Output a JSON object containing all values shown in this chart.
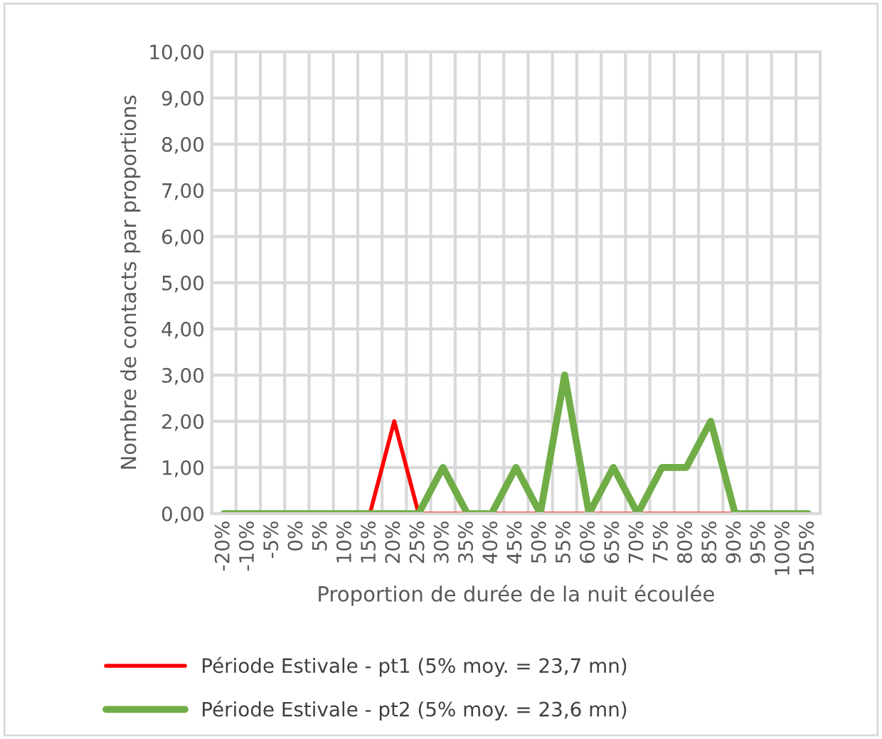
{
  "chart_data": {
    "type": "line",
    "xlabel": "Proportion de durée de la nuit écoulée",
    "ylabel": "Nombre de contacts par proportions",
    "categories": [
      "-20%",
      "-10%",
      "-5%",
      "0%",
      "5%",
      "10%",
      "15%",
      "20%",
      "25%",
      "30%",
      "35%",
      "40%",
      "45%",
      "50%",
      "55%",
      "60%",
      "65%",
      "70%",
      "75%",
      "80%",
      "85%",
      "90%",
      "95%",
      "100%",
      "105%"
    ],
    "series": [
      {
        "name": "Période Estivale - pt1 (5% moy. = 23,7 mn)",
        "color": "#ff0000",
        "values": [
          null,
          null,
          null,
          null,
          null,
          null,
          0,
          2,
          0,
          0,
          0,
          0,
          0,
          0,
          0,
          0,
          0,
          0,
          0,
          0,
          0,
          0,
          null,
          null,
          null
        ]
      },
      {
        "name": "Période Estivale - pt2 (5% moy. = 23,6 mn)",
        "color": "#70ad47",
        "values": [
          0,
          0,
          0,
          0,
          0,
          0,
          0,
          0,
          0,
          1,
          0,
          0,
          1,
          0,
          3,
          0,
          1,
          0,
          1,
          1,
          2,
          0,
          0,
          0,
          0
        ]
      }
    ],
    "ylim": [
      0,
      10
    ],
    "yticks": [
      {
        "value": 0,
        "label": "0,00"
      },
      {
        "value": 1,
        "label": "1,00"
      },
      {
        "value": 2,
        "label": "2,00"
      },
      {
        "value": 3,
        "label": "3,00"
      },
      {
        "value": 4,
        "label": "4,00"
      },
      {
        "value": 5,
        "label": "5,00"
      },
      {
        "value": 6,
        "label": "6,00"
      },
      {
        "value": 7,
        "label": "7,00"
      },
      {
        "value": 8,
        "label": "8,00"
      },
      {
        "value": 9,
        "label": "9,00"
      },
      {
        "value": 10,
        "label": "10,00"
      }
    ],
    "grid": true,
    "legend": "bottom",
    "marker": "none",
    "line_style": "solid"
  }
}
